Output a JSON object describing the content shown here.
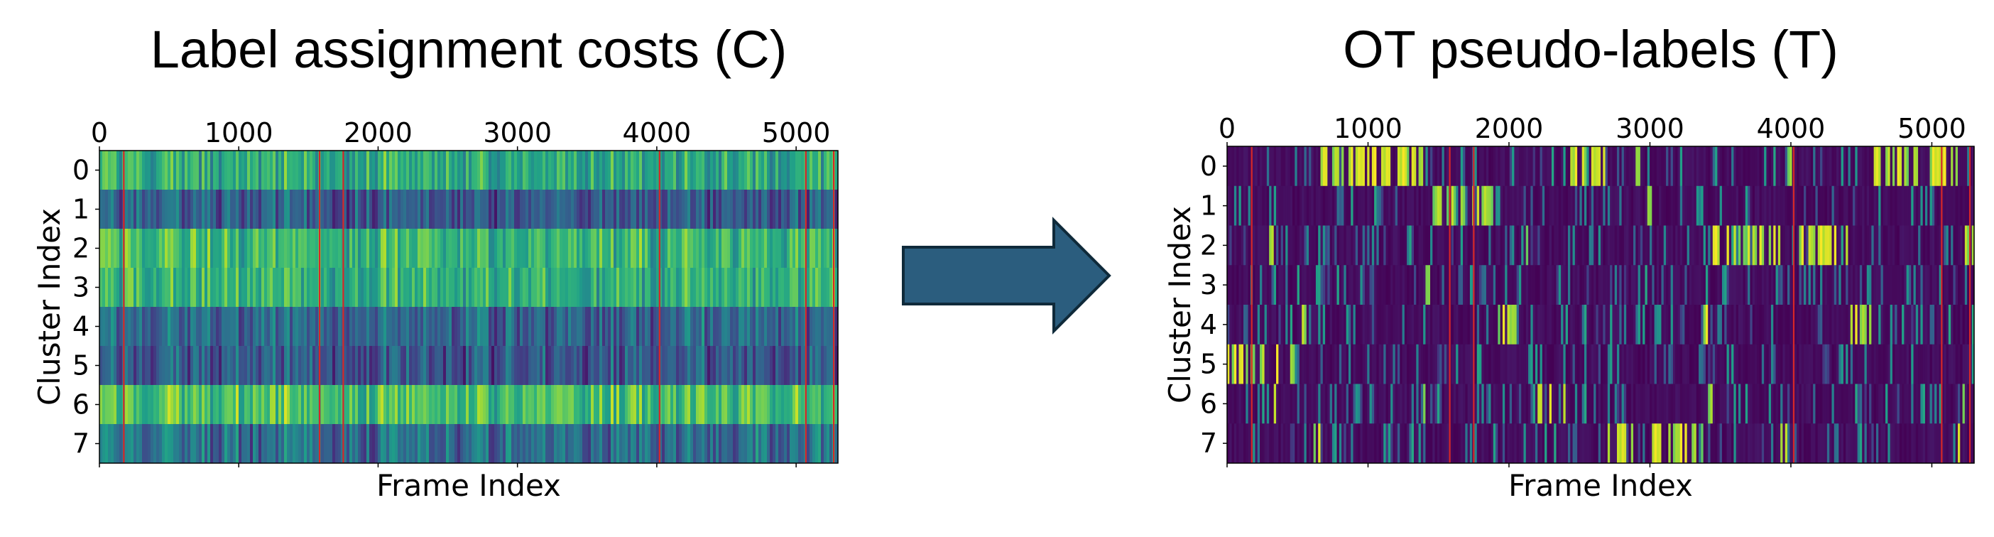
{
  "chart_data": [
    {
      "type": "heatmap",
      "title": "Label assignment costs (C)",
      "xlabel": "Frame Index",
      "ylabel": "Cluster Index",
      "xlim": [
        0,
        5300
      ],
      "x_ticks": [
        "0",
        "1000",
        "2000",
        "3000",
        "4000",
        "5000"
      ],
      "y_ticks": [
        "0",
        "1",
        "2",
        "3",
        "4",
        "5",
        "6",
        "7"
      ],
      "colormap": "viridis",
      "row_mean_level": [
        0.62,
        0.3,
        0.66,
        0.63,
        0.33,
        0.28,
        0.7,
        0.36
      ],
      "boundary_lines_x": [
        175,
        1580,
        1750,
        4020,
        5070,
        5270
      ],
      "boundary_color": "#d62728"
    },
    {
      "type": "heatmap",
      "title": "OT pseudo-labels (T)",
      "xlabel": "Frame Index",
      "ylabel": "Cluster Index",
      "xlim": [
        0,
        5300
      ],
      "x_ticks": [
        "0",
        "1000",
        "2000",
        "3000",
        "4000",
        "5000"
      ],
      "y_ticks": [
        "0",
        "1",
        "2",
        "3",
        "4",
        "5",
        "6",
        "7"
      ],
      "colormap": "viridis",
      "boundary_lines_x": [
        175,
        1580,
        1750,
        4020,
        5070,
        5270
      ],
      "boundary_color": "#d62728"
    }
  ],
  "arrow": {
    "fill": "#2b5d7e",
    "stroke": "#0f2a3a"
  }
}
